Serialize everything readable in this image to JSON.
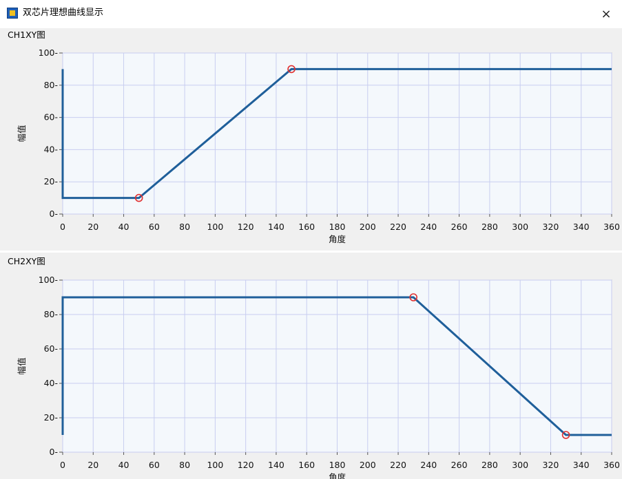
{
  "window": {
    "title": "双芯片理想曲线显示",
    "icon": "labview-vi-icon",
    "close_glyph": "×"
  },
  "colors": {
    "plot_background": "#f4f8fc",
    "panel_background": "#f0f0f0",
    "grid": "#c8cdf0",
    "curve": "#1f5f9a",
    "marker": "#e03030"
  },
  "graphs": [
    {
      "label": "CH1XY图",
      "xlabel": "角度",
      "ylabel": "幅值"
    },
    {
      "label": "CH2XY图",
      "xlabel": "角度",
      "ylabel": "幅值"
    }
  ],
  "chart_data": [
    {
      "type": "line",
      "title": "CH1XY图",
      "xlabel": "角度",
      "ylabel": "幅值",
      "xlim": [
        0,
        360
      ],
      "ylim": [
        0,
        100
      ],
      "x_ticks": [
        0,
        20,
        40,
        60,
        80,
        100,
        120,
        140,
        160,
        180,
        200,
        220,
        240,
        260,
        280,
        300,
        320,
        340,
        360
      ],
      "y_ticks": [
        0,
        20,
        40,
        60,
        80,
        100
      ],
      "grid": true,
      "series": [
        {
          "points": [
            [
              0,
              90
            ],
            [
              0,
              10
            ],
            [
              50,
              10
            ],
            [
              150,
              90
            ],
            [
              360,
              90
            ]
          ]
        }
      ],
      "markers": [
        [
          50,
          10
        ],
        [
          150,
          90
        ]
      ]
    },
    {
      "type": "line",
      "title": "CH2XY图",
      "xlabel": "角度",
      "ylabel": "幅值",
      "xlim": [
        0,
        360
      ],
      "ylim": [
        0,
        100
      ],
      "x_ticks": [
        0,
        20,
        40,
        60,
        80,
        100,
        120,
        140,
        160,
        180,
        200,
        220,
        240,
        260,
        280,
        300,
        320,
        340,
        360
      ],
      "y_ticks": [
        0,
        20,
        40,
        60,
        80,
        100
      ],
      "grid": true,
      "series": [
        {
          "points": [
            [
              0,
              10
            ],
            [
              0,
              90
            ],
            [
              230,
              90
            ],
            [
              330,
              10
            ],
            [
              360,
              10
            ]
          ]
        }
      ],
      "markers": [
        [
          230,
          90
        ],
        [
          330,
          10
        ]
      ]
    }
  ]
}
